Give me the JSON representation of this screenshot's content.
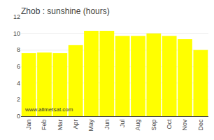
{
  "chart_data": {
    "type": "bar",
    "title": "Zhob : sunshine (hours)",
    "categories": [
      "Jan",
      "Feb",
      "Mar",
      "Apr",
      "May",
      "Jun",
      "Jul",
      "Aug",
      "Sep",
      "Oct",
      "Nov",
      "Dec"
    ],
    "values": [
      7.6,
      7.7,
      7.6,
      8.6,
      10.3,
      10.3,
      9.7,
      9.7,
      10.0,
      9.7,
      9.3,
      8.0
    ],
    "color": "#ffff00",
    "ylim": [
      0,
      12
    ],
    "yticks": [
      0,
      2,
      4,
      6,
      8,
      10,
      12
    ],
    "grid": true,
    "annotations": [
      {
        "text": "www.allmetsat.com"
      }
    ]
  }
}
